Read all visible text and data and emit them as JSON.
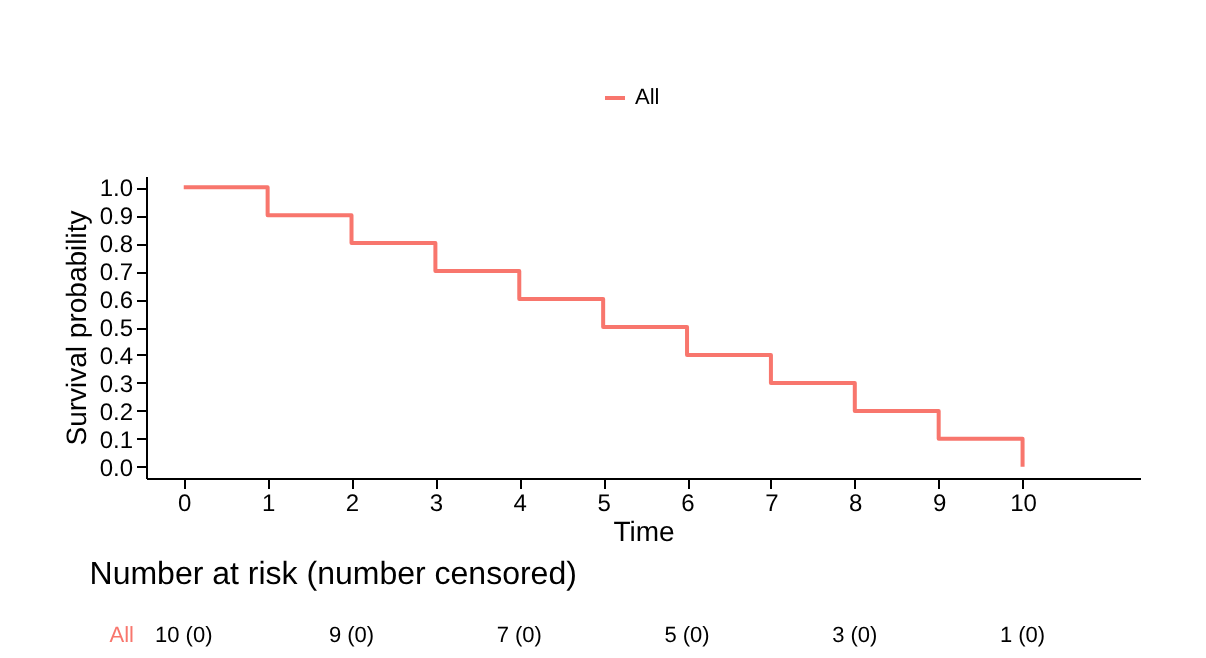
{
  "chart_data": {
    "type": "step",
    "xlabel": "Time",
    "ylabel": "Survival probability",
    "x": [
      0,
      1,
      2,
      3,
      4,
      5,
      6,
      7,
      8,
      9,
      10
    ],
    "series": [
      {
        "name": "All",
        "color": "#f8766d",
        "values": [
          1.0,
          0.9,
          0.8,
          0.7,
          0.6,
          0.5,
          0.4,
          0.3,
          0.2,
          0.1,
          0.0
        ]
      }
    ],
    "xlim": [
      -0.45,
      11.4
    ],
    "xticks": [
      0,
      1,
      2,
      3,
      4,
      5,
      6,
      7,
      8,
      9,
      10
    ],
    "ylim": [
      -0.04,
      1.04
    ],
    "yticks": [
      {
        "value": 0,
        "label": "0.0"
      },
      0.1,
      0.2,
      0.3,
      0.4,
      0.5,
      0.6,
      0.7,
      0.8,
      0.9,
      {
        "value": 1,
        "label": "1.0"
      }
    ],
    "grid": false,
    "legend": "top",
    "marker": "none",
    "line_style": "solid",
    "annotations": [
      "Number at risk (number censored)",
      "10 (0)",
      "9 (0)",
      "7 (0)",
      "5 (0)",
      "3 (0)",
      "1 (0)"
    ]
  }
}
